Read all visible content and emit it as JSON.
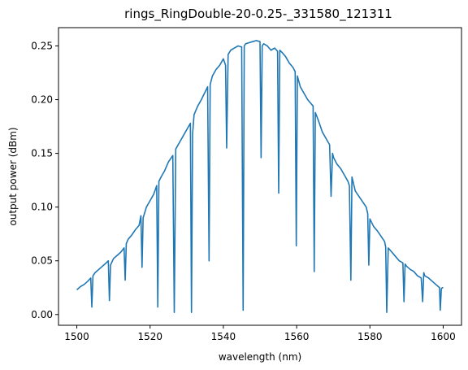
{
  "chart_data": {
    "type": "line",
    "title": "rings_RingDouble-20-0.25-_331580_121311",
    "xlabel": "wavelength (nm)",
    "ylabel": "output power (dBm)",
    "xlim": [
      1495,
      1605
    ],
    "ylim": [
      -0.01,
      0.267
    ],
    "xticks": [
      1500,
      1520,
      1540,
      1560,
      1580,
      1600
    ],
    "xtick_labels": [
      "1500",
      "1520",
      "1540",
      "1560",
      "1580",
      "1600"
    ],
    "yticks": [
      0.0,
      0.05,
      0.1,
      0.15,
      0.2,
      0.25
    ],
    "ytick_labels": [
      "0.00",
      "0.05",
      "0.10",
      "0.15",
      "0.20",
      "0.25"
    ],
    "grid": false,
    "color": "#1f77b4",
    "series": [
      {
        "x": [
          1500,
          1501,
          1502,
          1503,
          1503.8,
          1504.1,
          1504.4,
          1505,
          1506,
          1507,
          1508,
          1508.6,
          1508.9,
          1509.2,
          1510,
          1511,
          1512,
          1512.9,
          1513.2,
          1513.5,
          1514,
          1515,
          1516,
          1517,
          1517.5,
          1517.8,
          1518.1,
          1519,
          1520,
          1521,
          1521.8,
          1522.1,
          1522.4,
          1523,
          1524,
          1525,
          1526.2,
          1526.6,
          1527,
          1528,
          1529,
          1530,
          1531,
          1531.3,
          1531.6,
          1532,
          1533,
          1534,
          1535,
          1535.7,
          1536.1,
          1536.4,
          1537,
          1538,
          1539,
          1540,
          1540.6,
          1540.9,
          1541.3,
          1542,
          1543,
          1544,
          1545,
          1545.4,
          1545.7,
          1546.1,
          1547,
          1548,
          1549,
          1550,
          1550.3,
          1550.6,
          1551,
          1552,
          1553,
          1554,
          1554.8,
          1555.1,
          1555.4,
          1556,
          1557,
          1558,
          1559,
          1559.6,
          1559.9,
          1560.2,
          1561,
          1562,
          1563,
          1564,
          1564.5,
          1564.8,
          1565.1,
          1566,
          1567,
          1568,
          1569,
          1569.4,
          1569.8,
          1570.1,
          1571,
          1572,
          1573,
          1574,
          1574.4,
          1574.8,
          1575.1,
          1576,
          1577,
          1578,
          1579,
          1579.4,
          1579.7,
          1580,
          1581,
          1582,
          1583,
          1584,
          1584.3,
          1584.6,
          1585,
          1586,
          1587,
          1588,
          1589,
          1589.3,
          1589.6,
          1590,
          1591,
          1592,
          1593,
          1594,
          1594.4,
          1594.7,
          1595,
          1596,
          1597,
          1598,
          1599,
          1599.2,
          1599.5,
          1599.8,
          1600
        ],
        "y": [
          0.023,
          0.026,
          0.028,
          0.031,
          0.034,
          0.007,
          0.036,
          0.039,
          0.042,
          0.045,
          0.048,
          0.05,
          0.013,
          0.046,
          0.052,
          0.055,
          0.058,
          0.062,
          0.032,
          0.066,
          0.07,
          0.074,
          0.079,
          0.083,
          0.092,
          0.044,
          0.09,
          0.1,
          0.106,
          0.112,
          0.12,
          0.007,
          0.124,
          0.128,
          0.134,
          0.142,
          0.148,
          0.002,
          0.154,
          0.16,
          0.166,
          0.172,
          0.178,
          0.002,
          0.168,
          0.186,
          0.194,
          0.2,
          0.207,
          0.212,
          0.05,
          0.214,
          0.222,
          0.228,
          0.232,
          0.238,
          0.232,
          0.155,
          0.242,
          0.246,
          0.248,
          0.25,
          0.249,
          0.004,
          0.25,
          0.252,
          0.253,
          0.254,
          0.255,
          0.254,
          0.146,
          0.25,
          0.252,
          0.25,
          0.246,
          0.248,
          0.245,
          0.113,
          0.246,
          0.244,
          0.24,
          0.234,
          0.23,
          0.226,
          0.064,
          0.222,
          0.212,
          0.206,
          0.2,
          0.196,
          0.194,
          0.04,
          0.188,
          0.18,
          0.17,
          0.164,
          0.158,
          0.11,
          0.15,
          0.146,
          0.14,
          0.136,
          0.13,
          0.124,
          0.12,
          0.032,
          0.128,
          0.115,
          0.11,
          0.105,
          0.1,
          0.094,
          0.046,
          0.089,
          0.082,
          0.078,
          0.073,
          0.068,
          0.063,
          0.002,
          0.062,
          0.058,
          0.054,
          0.05,
          0.048,
          0.012,
          0.047,
          0.045,
          0.042,
          0.04,
          0.036,
          0.034,
          0.012,
          0.039,
          0.036,
          0.034,
          0.031,
          0.028,
          0.025,
          0.004,
          0.024,
          0.025,
          0.025
        ]
      }
    ]
  }
}
